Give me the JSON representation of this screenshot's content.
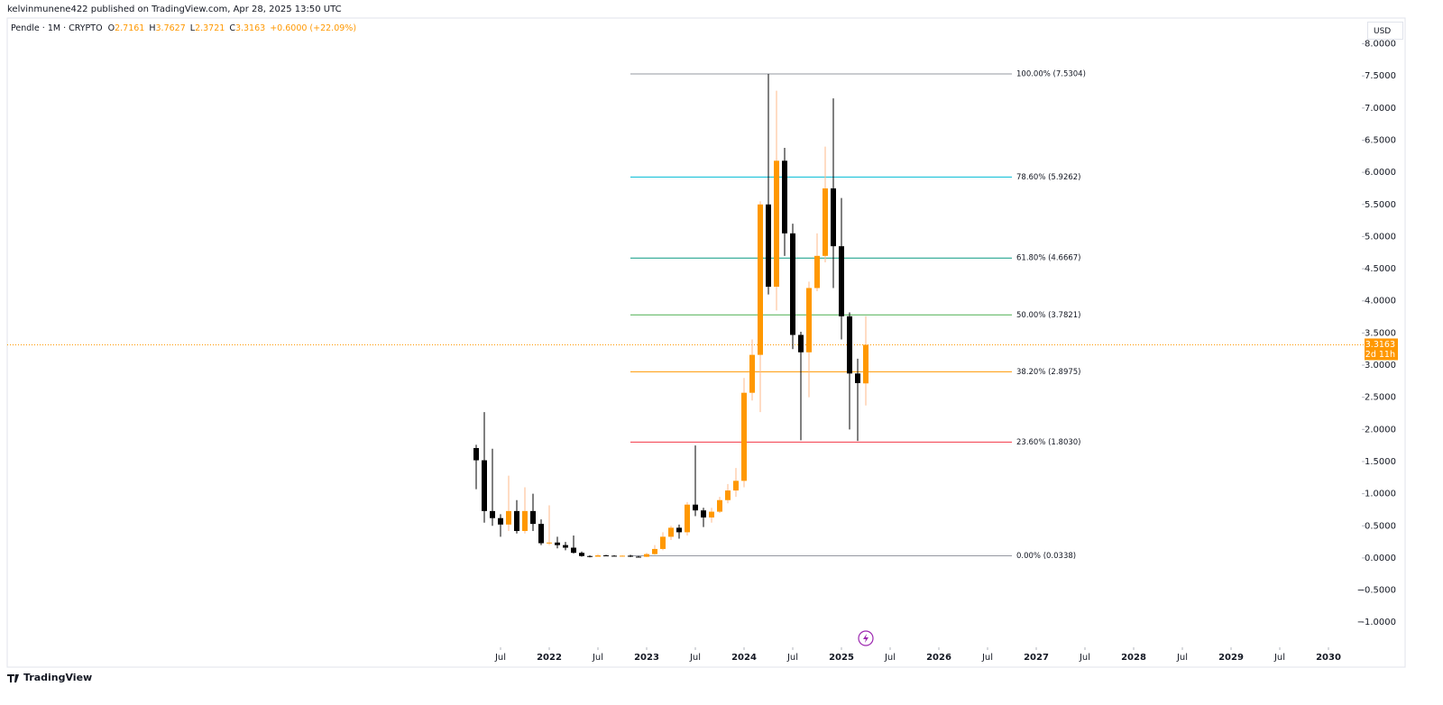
{
  "header": {
    "author_line": "kelvinmunene422 published on TradingView.com, Apr 28, 2025 13:50 UTC",
    "currency": "USD",
    "brand": "TradingView"
  },
  "chart_data": {
    "type": "candlestick",
    "symbol": "Pendle · 1M · CRYPTO",
    "ohlc_legend": [
      {
        "key": "O",
        "value": 2.7161
      },
      {
        "key": "H",
        "value": 3.7627
      },
      {
        "key": "L",
        "value": 2.3721
      },
      {
        "key": "C",
        "value": 3.3163
      }
    ],
    "change": "+0.6000 (+22.09%)",
    "x": [
      "2021-04",
      "2021-05",
      "2021-06",
      "2021-07",
      "2021-08",
      "2021-09",
      "2021-10",
      "2021-11",
      "2021-12",
      "2022-01",
      "2022-02",
      "2022-03",
      "2022-04",
      "2022-05",
      "2022-06",
      "2022-07",
      "2022-08",
      "2022-09",
      "2022-10",
      "2022-11",
      "2022-12",
      "2023-01",
      "2023-02",
      "2023-03",
      "2023-04",
      "2023-05",
      "2023-06",
      "2023-07",
      "2023-08",
      "2023-09",
      "2023-10",
      "2023-11",
      "2023-12",
      "2024-01",
      "2024-02",
      "2024-03",
      "2024-04",
      "2024-05",
      "2024-06",
      "2024-07",
      "2024-08",
      "2024-09",
      "2024-10",
      "2024-11",
      "2024-12",
      "2025-01",
      "2025-02",
      "2025-03",
      "2025-04"
    ],
    "open": [
      1.71,
      1.52,
      0.73,
      0.62,
      0.52,
      0.73,
      0.42,
      0.73,
      0.53,
      0.23,
      0.24,
      0.2,
      0.16,
      0.08,
      0.03,
      0.02,
      0.04,
      0.035,
      0.03,
      0.035,
      0.02,
      0.018,
      0.06,
      0.14,
      0.33,
      0.47,
      0.4,
      0.83,
      0.74,
      0.63,
      0.72,
      0.9,
      1.05,
      1.2,
      2.57,
      3.16,
      5.5,
      4.22,
      6.18,
      5.05,
      3.47,
      3.2,
      4.2,
      4.7,
      5.75,
      4.85,
      3.76,
      2.87,
      2.7161
    ],
    "high": [
      1.76,
      2.27,
      1.7,
      0.68,
      1.28,
      0.9,
      1.1,
      1.0,
      0.6,
      0.82,
      0.33,
      0.25,
      0.35,
      0.1,
      0.04,
      0.06,
      0.05,
      0.045,
      0.04,
      0.05,
      0.03,
      0.08,
      0.2,
      0.4,
      0.5,
      0.52,
      0.87,
      1.75,
      0.78,
      0.78,
      0.95,
      1.15,
      1.4,
      2.8,
      3.4,
      5.55,
      7.53,
      7.27,
      6.38,
      5.2,
      3.52,
      4.3,
      5.05,
      6.4,
      7.15,
      5.6,
      3.82,
      3.1,
      3.7627
    ],
    "low": [
      1.07,
      0.55,
      0.5,
      0.33,
      0.42,
      0.38,
      0.38,
      0.42,
      0.2,
      0.2,
      0.15,
      0.12,
      0.07,
      0.02,
      0.01,
      0.02,
      0.03,
      0.025,
      0.02,
      0.015,
      0.01,
      0.015,
      0.05,
      0.12,
      0.28,
      0.3,
      0.35,
      0.65,
      0.48,
      0.55,
      0.7,
      0.85,
      0.95,
      1.1,
      2.45,
      2.27,
      4.1,
      3.85,
      4.7,
      3.25,
      1.83,
      2.5,
      4.15,
      4.6,
      4.2,
      3.4,
      2.0,
      1.82,
      2.3721
    ],
    "close": [
      1.52,
      0.73,
      0.62,
      0.52,
      0.73,
      0.42,
      0.73,
      0.53,
      0.23,
      0.24,
      0.2,
      0.16,
      0.08,
      0.03,
      0.02,
      0.04,
      0.035,
      0.03,
      0.035,
      0.02,
      0.018,
      0.06,
      0.14,
      0.33,
      0.47,
      0.4,
      0.83,
      0.74,
      0.63,
      0.72,
      0.9,
      1.05,
      1.2,
      2.57,
      3.16,
      5.5,
      4.22,
      6.18,
      5.05,
      3.47,
      3.2,
      4.2,
      4.7,
      5.75,
      4.85,
      3.76,
      2.87,
      2.72,
      3.3163
    ],
    "up_color": "#ff9800",
    "down_color": "#000000",
    "up_wick_color": "#ffb98a",
    "down_wick_color": "#000000",
    "ylim": [
      -1.39,
      8.12
    ],
    "yticks": [
      {
        "value": -1,
        "label": "−1.0000"
      },
      {
        "value": -0.5,
        "label": "−0.5000"
      },
      {
        "value": 0,
        "label": "0.0000"
      },
      {
        "value": 0.5,
        "label": "0.5000"
      },
      {
        "value": 1,
        "label": "1.0000"
      },
      {
        "value": 1.5,
        "label": "1.5000"
      },
      {
        "value": 2,
        "label": "2.0000"
      },
      {
        "value": 2.5,
        "label": "2.5000"
      },
      {
        "value": 3,
        "label": "3.0000"
      },
      {
        "value": 3.5,
        "label": "3.5000"
      },
      {
        "value": 4,
        "label": "4.0000"
      },
      {
        "value": 4.5,
        "label": "4.5000"
      },
      {
        "value": 5,
        "label": "5.0000"
      },
      {
        "value": 5.5,
        "label": "5.5000"
      },
      {
        "value": 6,
        "label": "6.0000"
      },
      {
        "value": 6.5,
        "label": "6.5000"
      },
      {
        "value": 7,
        "label": "7.0000"
      },
      {
        "value": 7.5,
        "label": "7.5000"
      },
      {
        "value": 8,
        "label": "8.0000"
      }
    ],
    "xticks": [
      {
        "value": "2021-07",
        "label": "Jul"
      },
      {
        "value": "2022-01",
        "label": "2022"
      },
      {
        "value": "2022-07",
        "label": "Jul"
      },
      {
        "value": "2023-01",
        "label": "2023"
      },
      {
        "value": "2023-07",
        "label": "Jul"
      },
      {
        "value": "2024-01",
        "label": "2024"
      },
      {
        "value": "2024-07",
        "label": "Jul"
      },
      {
        "value": "2025-01",
        "label": "2025"
      },
      {
        "value": "2025-07",
        "label": "Jul"
      },
      {
        "value": "2026-01",
        "label": "2026"
      },
      {
        "value": "2026-07",
        "label": "Jul"
      },
      {
        "value": "2027-01",
        "label": "2027"
      },
      {
        "value": "2027-07",
        "label": "Jul"
      },
      {
        "value": "2028-01",
        "label": "2028"
      },
      {
        "value": "2028-07",
        "label": "Jul"
      },
      {
        "value": "2029-01",
        "label": "2029"
      },
      {
        "value": "2029-07",
        "label": "Jul"
      },
      {
        "value": "2030-01",
        "label": "2030"
      }
    ],
    "fib_levels": [
      {
        "label": "100.00% (7.5304)",
        "value": 7.5304,
        "color": "#9598a1"
      },
      {
        "label": "78.60% (5.9262)",
        "value": 5.9262,
        "color": "#00bcd4"
      },
      {
        "label": "61.80% (4.6667)",
        "value": 4.6667,
        "color": "#089981"
      },
      {
        "label": "50.00% (3.7821)",
        "value": 3.7821,
        "color": "#4caf50"
      },
      {
        "label": "38.20% (2.8975)",
        "value": 2.8975,
        "color": "#ff9800"
      },
      {
        "label": "23.60% (1.8030)",
        "value": 1.803,
        "color": "#f23645"
      },
      {
        "label": "0.00% (0.0338)",
        "value": 0.0338,
        "color": "#9598a1"
      }
    ],
    "last_price": 3.3163,
    "countdown": "2d 11h"
  }
}
